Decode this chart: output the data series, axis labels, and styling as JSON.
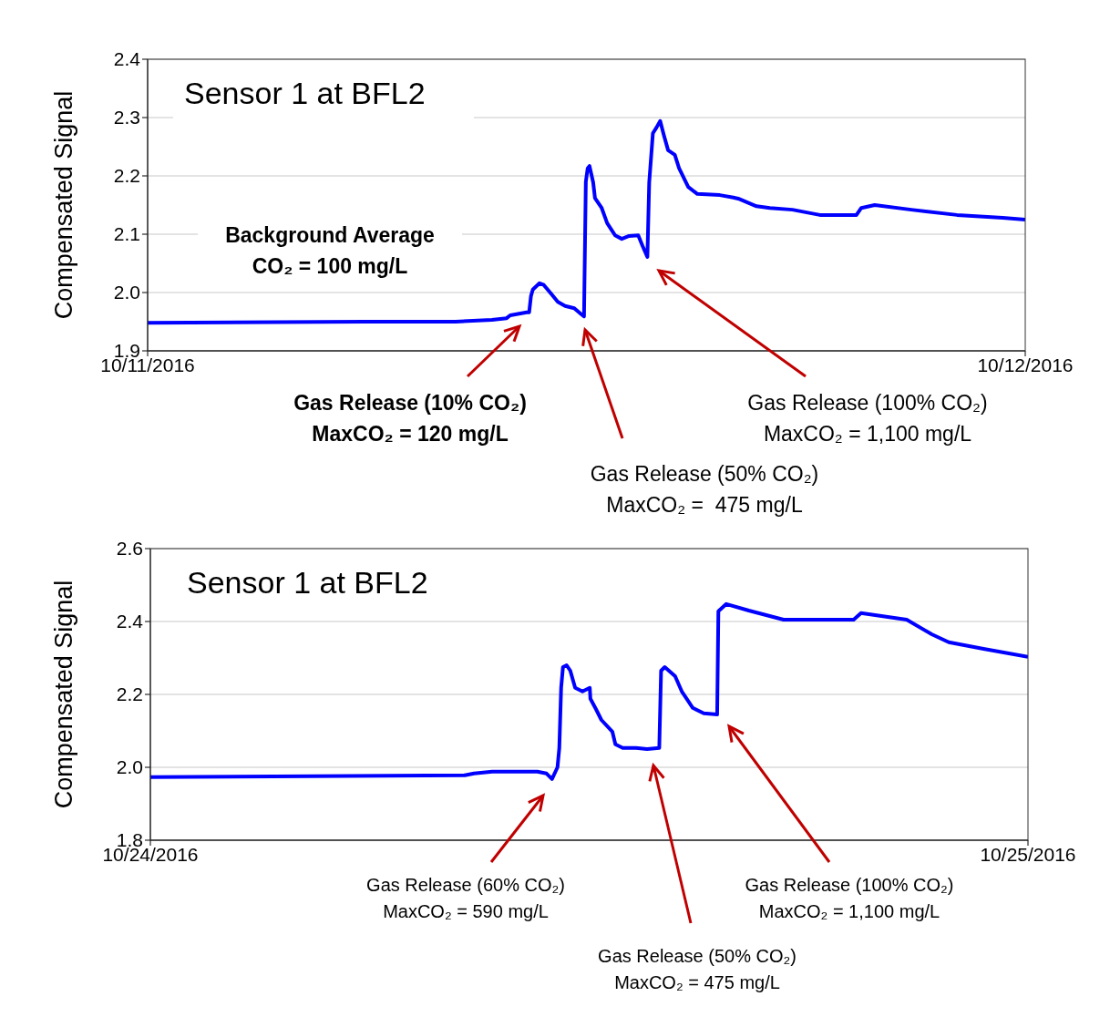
{
  "chart_data": [
    {
      "type": "line",
      "title": "Sensor 1 at BFL2",
      "ylabel": "Compensated Signal",
      "marker": "none",
      "grid": "y",
      "x": [
        "2016-10-11T00:00",
        "2016-10-11T05:56",
        "2016-10-11T08:25",
        "2016-10-11T09:25",
        "2016-10-11T09:49",
        "2016-10-11T09:55",
        "2016-10-11T10:22",
        "2016-10-11T10:26",
        "2016-10-11T10:29",
        "2016-10-11T10:32",
        "2016-10-11T10:43",
        "2016-10-11T10:50",
        "2016-10-11T11:02",
        "2016-10-11T11:13",
        "2016-10-11T11:25",
        "2016-10-11T11:40",
        "2016-10-11T11:50",
        "2016-10-11T11:56",
        "2016-10-11T11:59",
        "2016-10-11T12:02",
        "2016-10-11T12:05",
        "2016-10-11T12:11",
        "2016-10-11T12:14",
        "2016-10-11T12:25",
        "2016-10-11T12:34",
        "2016-10-11T12:47",
        "2016-10-11T12:58",
        "2016-10-11T13:10",
        "2016-10-11T13:25",
        "2016-10-11T13:32",
        "2016-10-11T13:40",
        "2016-10-11T13:43",
        "2016-10-11T13:49",
        "2016-10-11T13:55",
        "2016-10-11T14:01",
        "2016-10-11T14:07",
        "2016-10-11T14:14",
        "2016-10-11T14:25",
        "2016-10-11T14:32",
        "2016-10-11T14:47",
        "2016-10-11T15:02",
        "2016-10-11T15:39",
        "2016-10-11T16:01",
        "2016-10-11T16:09",
        "2016-10-11T16:39",
        "2016-10-11T17:01",
        "2016-10-11T17:38",
        "2016-10-11T18:23",
        "2016-10-11T19:23",
        "2016-10-11T19:31",
        "2016-10-11T19:53",
        "2016-10-11T20:53",
        "2016-10-11T22:08",
        "2016-10-11T23:23",
        "2016-10-12T00:00"
      ],
      "series": [
        {
          "color": "#0000ff",
          "values": [
            1.948,
            1.95,
            1.95,
            1.953,
            1.956,
            1.961,
            1.966,
            1.966,
            1.994,
            2.005,
            2.016,
            2.013,
            1.998,
            1.984,
            1.977,
            1.973,
            1.964,
            1.959,
            2.19,
            2.213,
            2.217,
            2.189,
            2.162,
            2.145,
            2.119,
            2.098,
            2.092,
            2.097,
            2.098,
            2.08,
            2.061,
            2.189,
            2.273,
            2.283,
            2.294,
            2.27,
            2.244,
            2.236,
            2.213,
            2.181,
            2.169,
            2.167,
            2.163,
            2.161,
            2.148,
            2.145,
            2.142,
            2.133,
            2.133,
            2.145,
            2.15,
            2.142,
            2.133,
            2.128,
            2.125
          ]
        }
      ],
      "xlim": [
        "2016-10-11",
        "2016-10-12"
      ],
      "xticks": [
        {
          "value": "2016-10-11",
          "label": "10/11/2016"
        },
        {
          "value": "2016-10-12",
          "label": "10/12/2016"
        }
      ],
      "ylim": [
        1.9,
        2.4
      ],
      "yticks": [
        1.9,
        {
          "value": 2,
          "label": "2.0"
        },
        2.1,
        2.2,
        2.3,
        2.4
      ],
      "annotations": [
        "Background Average\nCO₂ = 100 mg/L",
        "Gas Release (10% CO₂)\nMaxCO₂ = 120 mg/L",
        "Gas Release (50% CO₂)\nMaxCO₂ =  475 mg/L",
        "Gas Release (100% CO₂)\nMaxCO₂ = 1,100 mg/L"
      ]
    },
    {
      "type": "line",
      "title": "Sensor 1 at BFL2",
      "ylabel": "Compensated Signal",
      "marker": "none",
      "grid": "y",
      "x": [
        "2016-10-24T00:00",
        "2016-10-24T03:22",
        "2016-10-24T08:36",
        "2016-10-24T08:51",
        "2016-10-24T09:21",
        "2016-10-24T10:35",
        "2016-10-24T10:50",
        "2016-10-24T10:59",
        "2016-10-24T11:08",
        "2016-10-24T11:11",
        "2016-10-24T11:14",
        "2016-10-24T11:17",
        "2016-10-24T11:23",
        "2016-10-24T11:29",
        "2016-10-24T11:37",
        "2016-10-24T11:49",
        "2016-10-24T12:01",
        "2016-10-24T12:02",
        "2016-10-24T12:11",
        "2016-10-24T12:20",
        "2016-10-24T12:38",
        "2016-10-24T12:43",
        "2016-10-24T12:55",
        "2016-10-24T13:17",
        "2016-10-24T13:35",
        "2016-10-24T13:55",
        "2016-10-24T13:58",
        "2016-10-24T14:04",
        "2016-10-24T14:21",
        "2016-10-24T14:32",
        "2016-10-24T14:50",
        "2016-10-24T15:08",
        "2016-10-24T15:30",
        "2016-10-24T15:32",
        "2016-10-24T15:45",
        "2016-10-24T16:22",
        "2016-10-24T17:19",
        "2016-10-24T19:14",
        "2016-10-24T19:26",
        "2016-10-24T20:41",
        "2016-10-24T21:22",
        "2016-10-24T21:50",
        "2016-10-24T22:47",
        "2016-10-25T00:00"
      ],
      "series": [
        {
          "color": "#0000ff",
          "values": [
            1.973,
            1.975,
            1.978,
            1.983,
            1.988,
            1.988,
            1.983,
            1.968,
            2.0,
            2.053,
            2.218,
            2.275,
            2.28,
            2.265,
            2.218,
            2.208,
            2.218,
            2.188,
            2.16,
            2.13,
            2.098,
            2.063,
            2.053,
            2.053,
            2.05,
            2.053,
            2.265,
            2.275,
            2.25,
            2.208,
            2.163,
            2.148,
            2.145,
            2.428,
            2.448,
            2.43,
            2.405,
            2.405,
            2.423,
            2.405,
            2.365,
            2.343,
            2.325,
            2.303
          ]
        }
      ],
      "xlim": [
        "2016-10-24",
        "2016-10-25"
      ],
      "xticks": [
        {
          "value": "2016-10-24",
          "label": "10/24/2016"
        },
        {
          "value": "2016-10-25",
          "label": "10/25/2016"
        }
      ],
      "ylim": [
        1.8,
        2.6
      ],
      "yticks": [
        1.8,
        {
          "value": 2,
          "label": "2.0"
        },
        2.2,
        2.4,
        2.6
      ],
      "annotations": [
        "Gas Release (60% CO₂)\nMaxCO₂ = 590 mg/L",
        "Gas Release (50% CO₂)\nMaxCO₂ = 475 mg/L",
        "Gas Release (100% CO₂)\nMaxCO₂ = 1,100 mg/L"
      ]
    }
  ]
}
